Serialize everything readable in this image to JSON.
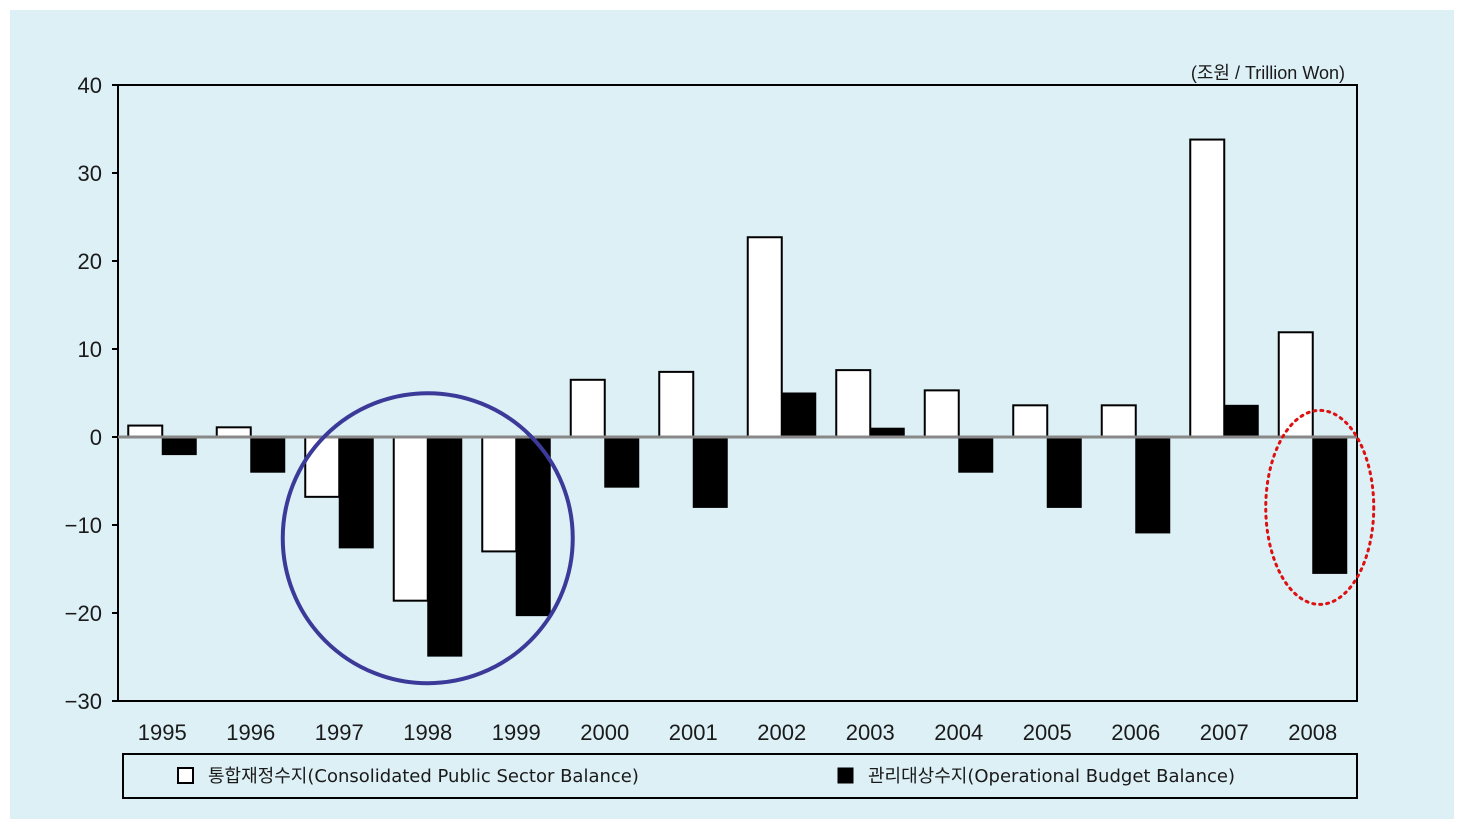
{
  "chart_data": {
    "type": "bar",
    "unit_label": "(조원 / Trillion Won)",
    "categories": [
      "1995",
      "1996",
      "1997",
      "1998",
      "1999",
      "2000",
      "2001",
      "2002",
      "2003",
      "2004",
      "2005",
      "2006",
      "2007",
      "2008"
    ],
    "series": [
      {
        "name": "통합재정수지(Consolidated Public Sector Balance)",
        "style": "hollow",
        "values": [
          1.3,
          1.1,
          -6.8,
          -18.6,
          -13.0,
          6.5,
          7.4,
          22.7,
          7.6,
          5.3,
          3.6,
          3.6,
          33.8,
          11.9
        ]
      },
      {
        "name": "관리대상수지(Operational Budget Balance)",
        "style": "filled",
        "values": [
          -2.0,
          -4.0,
          -12.6,
          -24.9,
          -20.3,
          -5.7,
          -8.0,
          5.0,
          1.0,
          -4.0,
          -8.0,
          -10.9,
          3.6,
          -15.5
        ]
      }
    ],
    "ylim": [
      -30,
      40
    ],
    "yticks": [
      40,
      30,
      20,
      10,
      0,
      -10,
      -20,
      -30
    ],
    "ytick_labels": [
      "40",
      "30",
      "20",
      "10",
      "0",
      "−10",
      "−20",
      "−30"
    ],
    "legend_position": "bottom",
    "annotations": [
      {
        "shape": "circle",
        "color": "#3b3a99",
        "style": "solid",
        "around": [
          "1997",
          "1998",
          "1999"
        ]
      },
      {
        "shape": "ellipse",
        "color": "#dd1111",
        "style": "dotted",
        "around": [
          "2008"
        ]
      }
    ],
    "colors": {
      "background": "#dcf0f6",
      "filled_bar": "#000000",
      "hollow_bar": "#ffffff",
      "zero_line": "#888888"
    }
  }
}
